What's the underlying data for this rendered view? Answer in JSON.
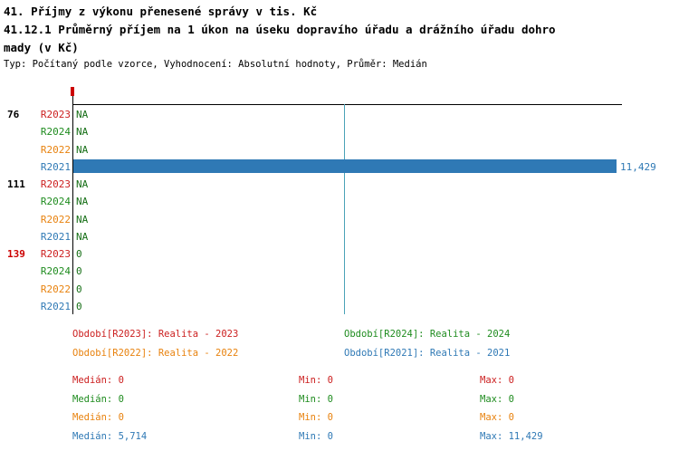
{
  "colors": {
    "red": "#cc2020",
    "green": "#1f8c1f",
    "orange": "#e8820e",
    "blue": "#2f79b5",
    "bar": "#2f79b5",
    "gridline": "#4ba3b8",
    "value": "#156e15",
    "axis": "#000000",
    "group_default": "#000000",
    "group_alert": "#cc0000",
    "tick": "#cc0000"
  },
  "header": {
    "title_line1": "41. Příjmy z výkonu přenesené správy v tis. Kč",
    "title_line2": "41.12.1 Průměrný příjem na 1 úkon na úseku dopravího úřadu a drážního úřadu dohro",
    "title_line3": "mady (v Kč)",
    "meta": "Typ: Počítaný podle vzorce, Vyhodnocení: Absolutní hodnoty, Průměr: Medián"
  },
  "chart_data": {
    "type": "bar",
    "orientation": "horizontal",
    "x_axis": {
      "min": 0,
      "max": 11429,
      "gridline_at": 5714
    },
    "series_colors": {
      "R2023": "red",
      "R2024": "green",
      "R2022": "orange",
      "R2021": "blue"
    },
    "groups": [
      {
        "label": "76",
        "label_color": "group_default",
        "rows": [
          {
            "series": "R2023",
            "value": null,
            "display": "NA"
          },
          {
            "series": "R2024",
            "value": null,
            "display": "NA"
          },
          {
            "series": "R2022",
            "value": null,
            "display": "NA"
          },
          {
            "series": "R2021",
            "value": 11429,
            "display": "11,429"
          }
        ]
      },
      {
        "label": "111",
        "label_color": "group_default",
        "rows": [
          {
            "series": "R2023",
            "value": null,
            "display": "NA"
          },
          {
            "series": "R2024",
            "value": null,
            "display": "NA"
          },
          {
            "series": "R2022",
            "value": null,
            "display": "NA"
          },
          {
            "series": "R2021",
            "value": null,
            "display": "NA"
          }
        ]
      },
      {
        "label": "139",
        "label_color": "group_alert",
        "rows": [
          {
            "series": "R2023",
            "value": 0,
            "display": "0"
          },
          {
            "series": "R2024",
            "value": 0,
            "display": "0"
          },
          {
            "series": "R2022",
            "value": 0,
            "display": "0"
          },
          {
            "series": "R2021",
            "value": 0,
            "display": "0"
          }
        ]
      }
    ]
  },
  "legend": [
    {
      "series": "R2023",
      "text": "Období[R2023]: Realita - 2023",
      "color": "red"
    },
    {
      "series": "R2024",
      "text": "Období[R2024]: Realita - 2024",
      "color": "green"
    },
    {
      "series": "R2022",
      "text": "Období[R2022]: Realita - 2022",
      "color": "orange"
    },
    {
      "series": "R2021",
      "text": "Období[R2021]: Realita - 2021",
      "color": "blue"
    }
  ],
  "stats_rows": [
    {
      "series": "R2023",
      "color": "red",
      "cells": [
        "Medián: 0",
        "Min: 0",
        "Max: 0"
      ]
    },
    {
      "series": "R2024",
      "color": "green",
      "cells": [
        "Medián: 0",
        "Min: 0",
        "Max: 0"
      ]
    },
    {
      "series": "R2022",
      "color": "orange",
      "cells": [
        "Medián: 0",
        "Min: 0",
        "Max: 0"
      ]
    },
    {
      "series": "R2021",
      "color": "blue",
      "cells": [
        "Medián: 5,714",
        "Min: 0",
        "Max: 11,429"
      ]
    }
  ]
}
